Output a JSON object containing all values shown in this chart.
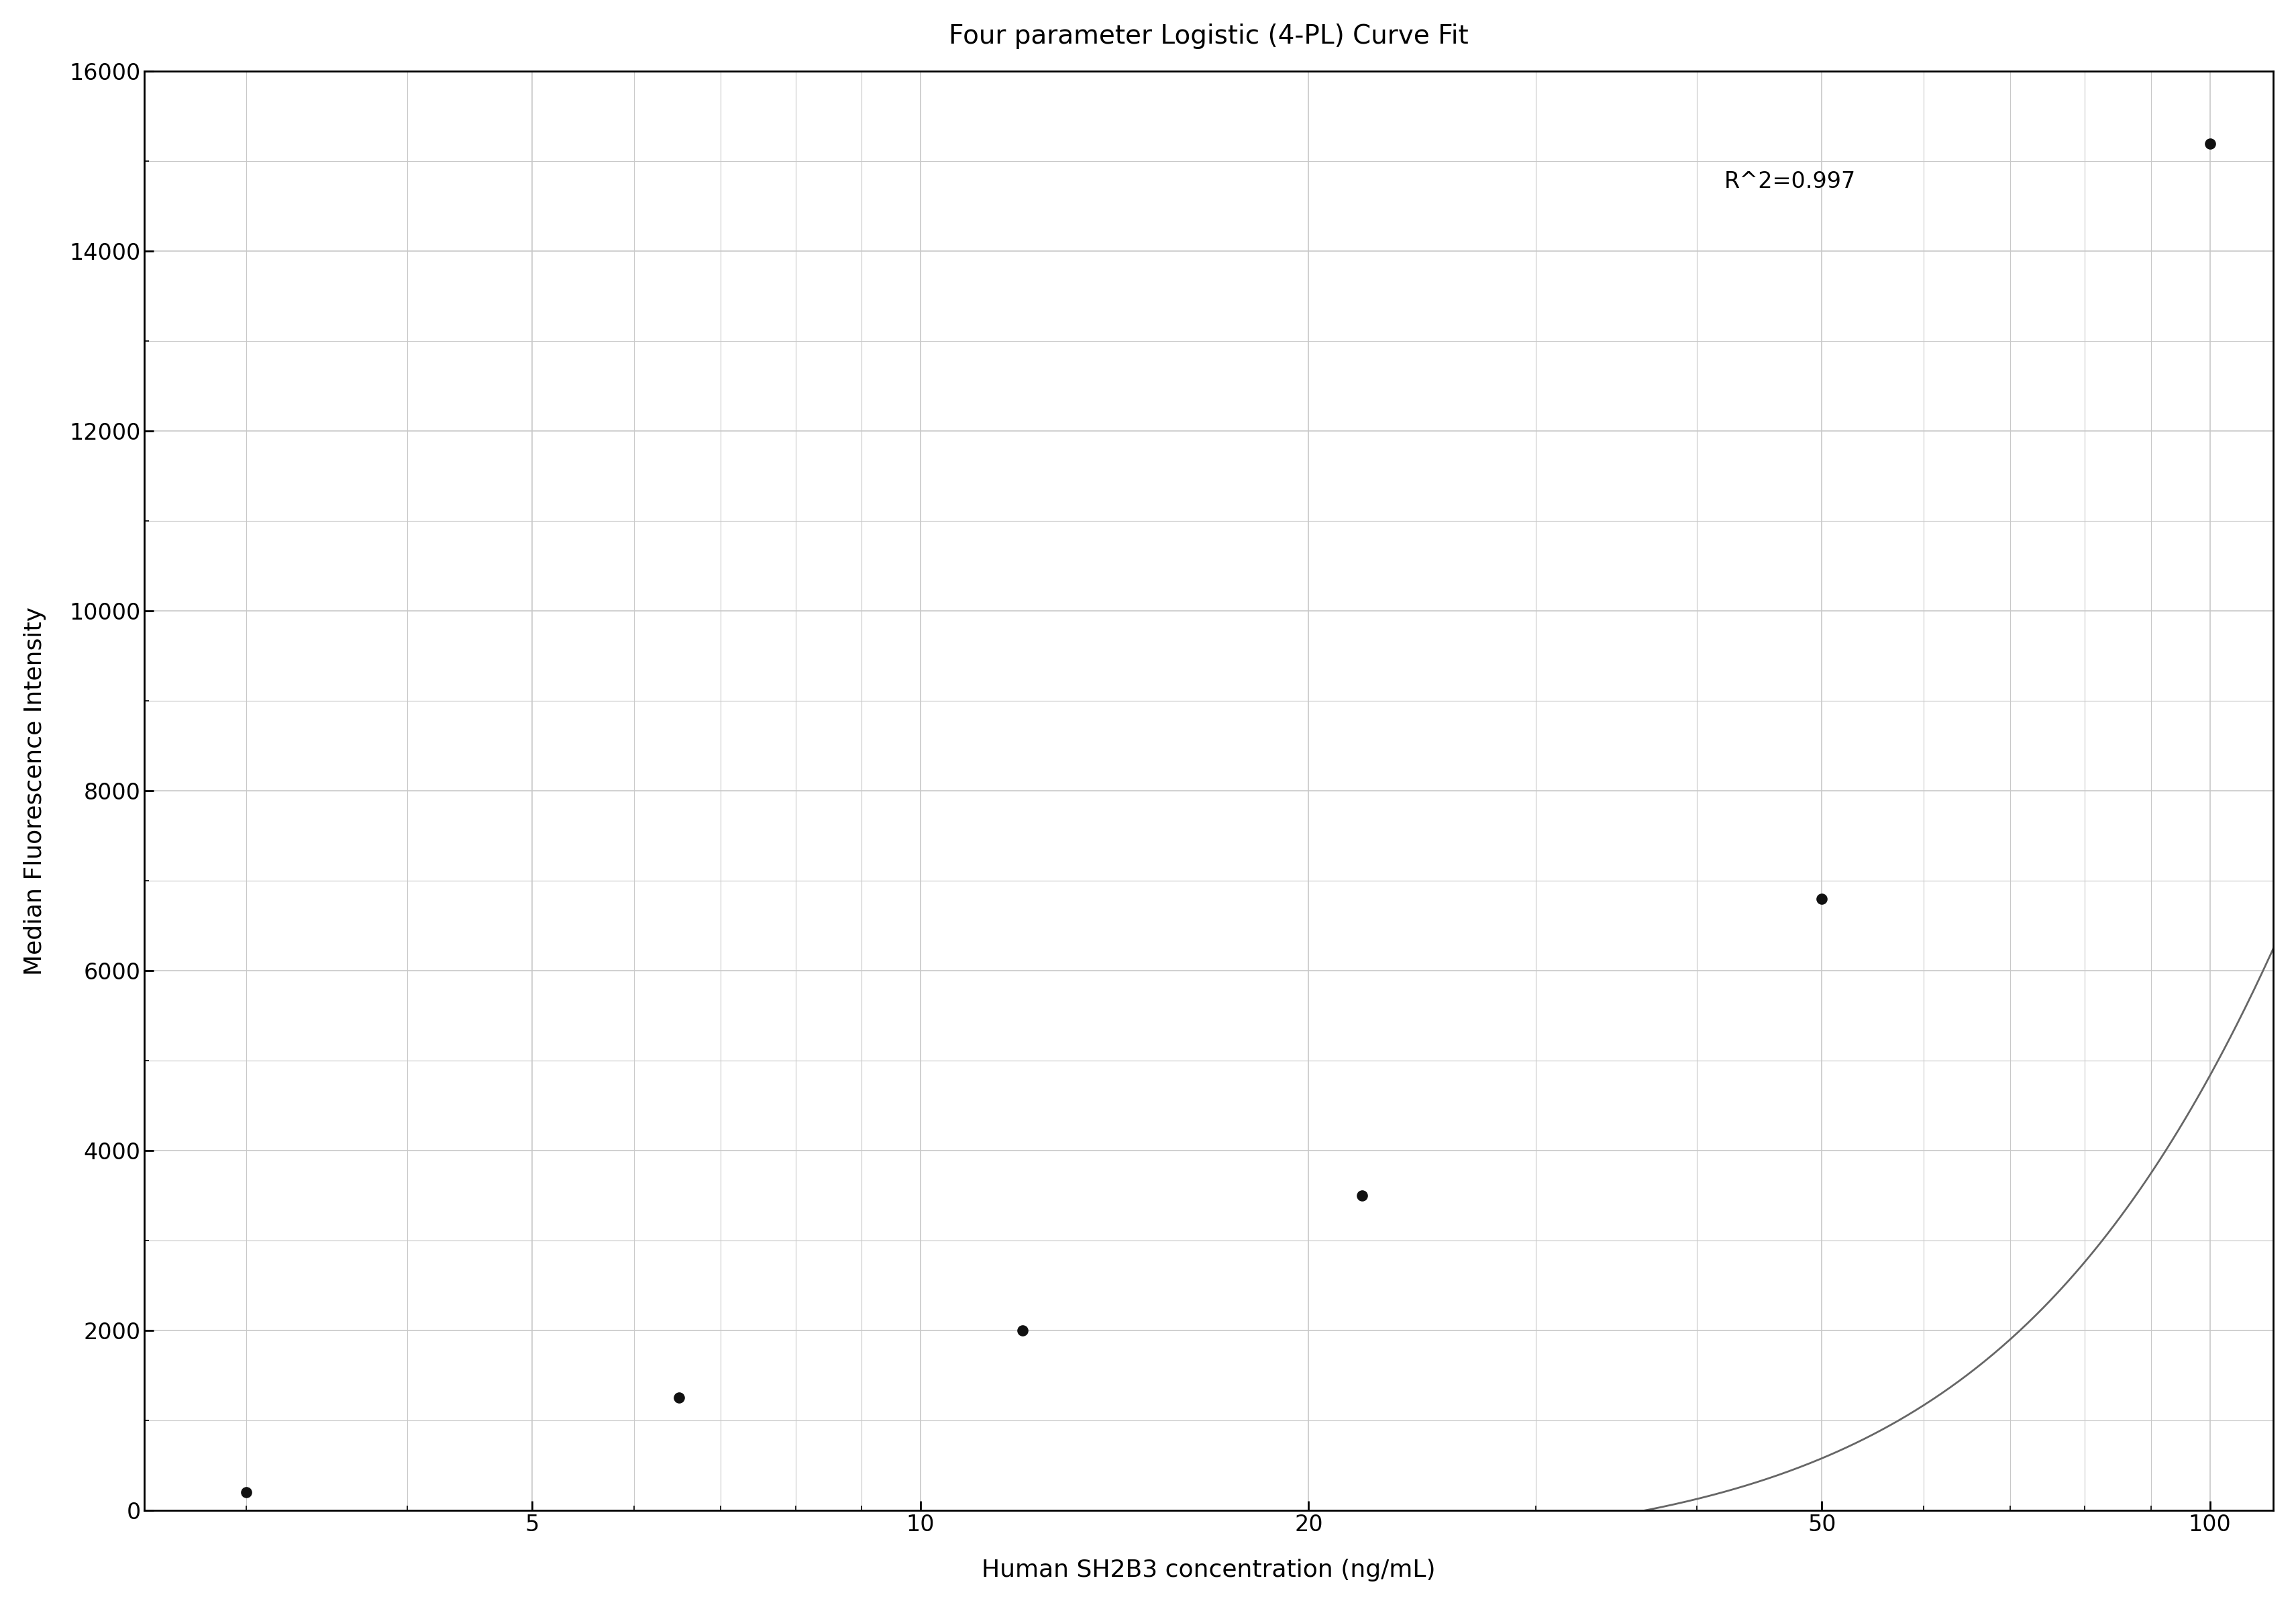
{
  "title": "Four parameter Logistic (4-PL) Curve Fit",
  "xlabel": "Human SH2B3 concentration (ng/mL)",
  "ylabel": "Median Fluorescence Intensity",
  "data_x": [
    3.0,
    6.5,
    12.0,
    22.0,
    50.0,
    100.0
  ],
  "data_y": [
    200,
    1250,
    2000,
    3500,
    6800,
    15200
  ],
  "r_squared_text": "R^2=0.997",
  "r2_x": 42.0,
  "r2_y": 14900,
  "ylim": [
    0,
    16000
  ],
  "xlim": [
    2.5,
    112
  ],
  "xticks": [
    5,
    10,
    20,
    50,
    100
  ],
  "yticks": [
    0,
    2000,
    4000,
    6000,
    8000,
    10000,
    12000,
    14000,
    16000
  ],
  "curve_color": "#666666",
  "point_color": "#111111",
  "grid_major_color": "#c8c8c8",
  "grid_minor_color": "#c8c8c8",
  "background_color": "#ffffff",
  "title_fontsize": 28,
  "label_fontsize": 26,
  "tick_fontsize": 24,
  "annotation_fontsize": 24,
  "point_size": 120,
  "linewidth": 2.0,
  "spine_linewidth": 2.0
}
